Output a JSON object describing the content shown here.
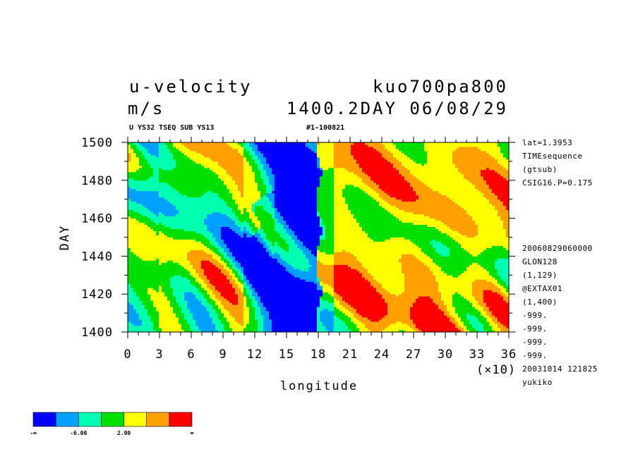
{
  "header": {
    "variable": "u-velocity",
    "units": "m/s",
    "experiment": "kuo700pa800",
    "time_info": "1400.2DAY 06/08/29",
    "subtitle_left": "U YS32 TSEQ SUB YS13",
    "subtitle_right": "#1-100821"
  },
  "side_info_top": [
    "lat=1.3953",
    "TIMEsequence",
    "(gtsub)",
    "CSIG16.P=0.175"
  ],
  "side_info_bottom": [
    "20060829060000",
    "GLON128",
    "(1,129)",
    "@EXTAX01",
    "(1,400)",
    "-999.",
    "-999.",
    "-999.",
    "-999.",
    "20031014 121825",
    "yukiko"
  ],
  "chart_data": {
    "type": "heatmap",
    "title": "u-velocity",
    "units": "m/s",
    "xlabel": "longitude",
    "x_multiplier": "(×10)",
    "ylabel": "DAY",
    "xlim": [
      0,
      36
    ],
    "ylim": [
      1400,
      1500
    ],
    "x_ticks": [
      "0",
      "3",
      "6",
      "9",
      "12",
      "15",
      "18",
      "21",
      "24",
      "27",
      "30",
      "33",
      "36"
    ],
    "y_ticks": [
      "1400",
      "1420",
      "1440",
      "1460",
      "1480",
      "1500"
    ],
    "contour_levels": [
      "-∞",
      "-6.00",
      "2.00",
      "∞"
    ],
    "color_bins": [
      "#0000ff",
      "#00a0ff",
      "#00ffb0",
      "#00e000",
      "#ffff00",
      "#ffa000",
      "#ff0000"
    ],
    "strong_easterly_band_x": [
      14,
      18
    ]
  }
}
